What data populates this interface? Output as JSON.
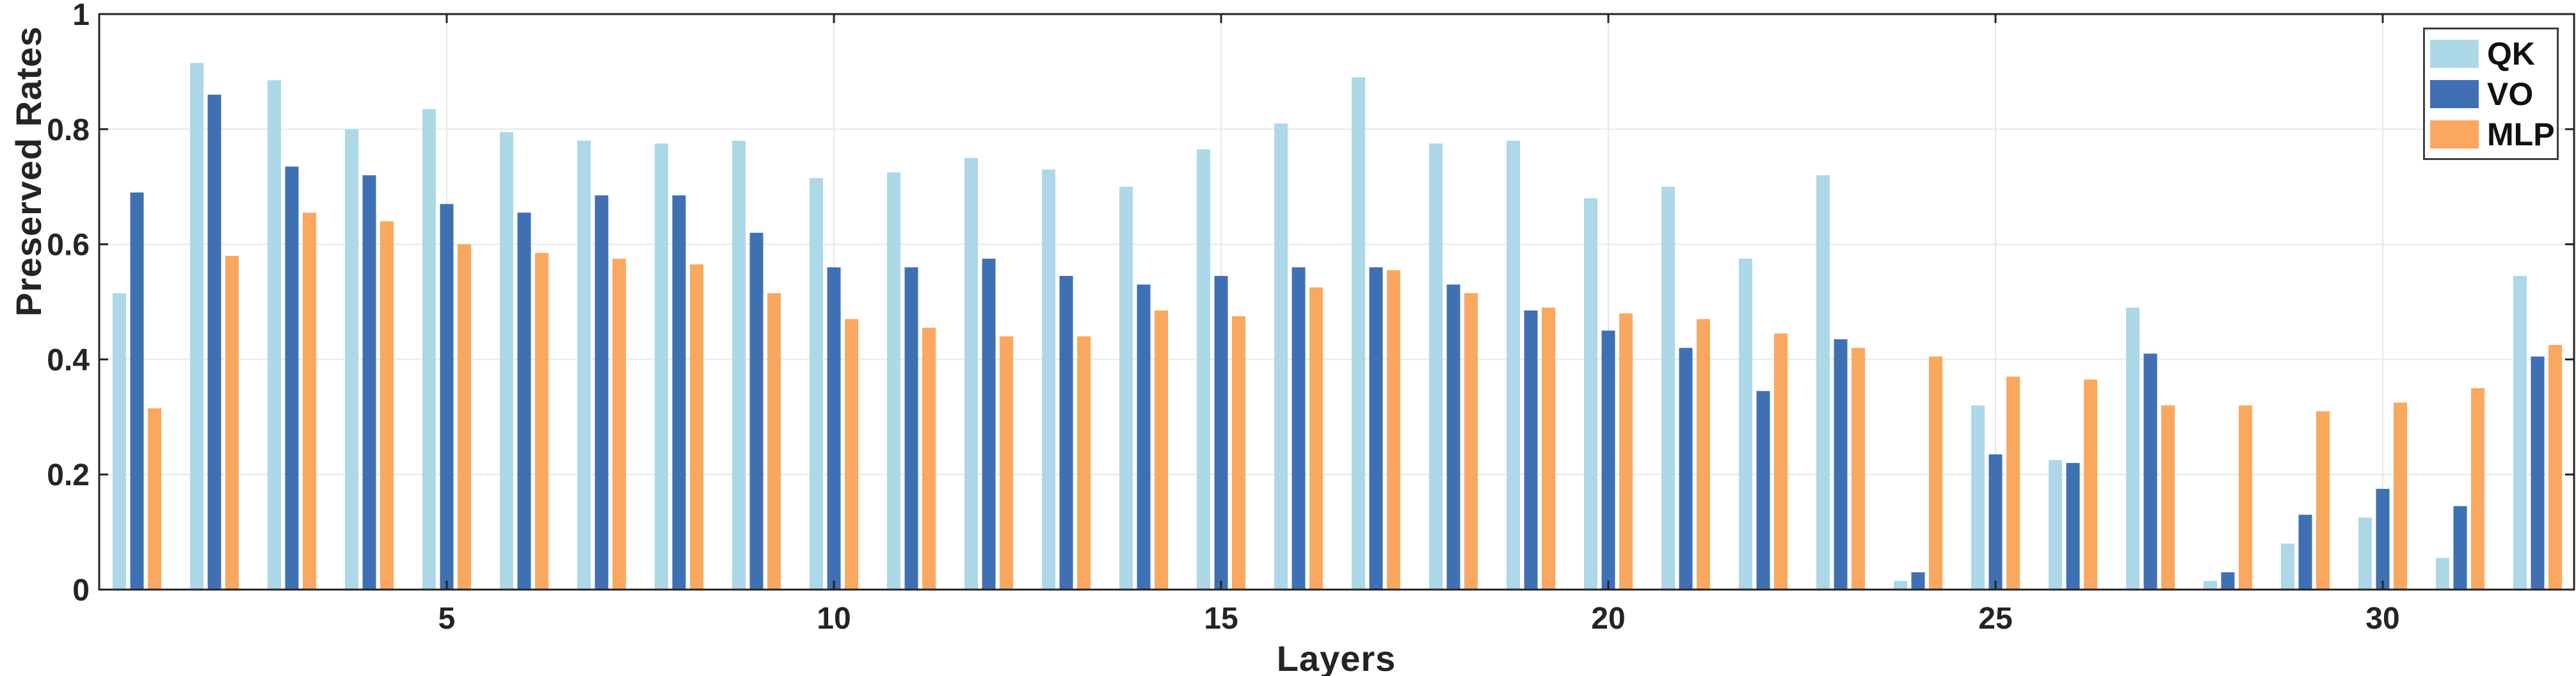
{
  "figure": {
    "kind": "grouped-bar-chart",
    "background_color": "#ffffff",
    "axis_color": "#242424",
    "grid_color": "#e7e7e7"
  },
  "chart_data": {
    "type": "bar",
    "title": "",
    "xlabel": "Layers",
    "ylabel": "Preserved Rates",
    "categories": [
      1,
      2,
      3,
      4,
      5,
      6,
      7,
      8,
      9,
      10,
      11,
      12,
      13,
      14,
      15,
      16,
      17,
      18,
      19,
      20,
      21,
      22,
      23,
      24,
      25,
      26,
      27,
      28,
      29,
      30,
      31,
      32
    ],
    "series": [
      {
        "name": "QK",
        "color": "#ACD8E8",
        "values": [
          0.515,
          0.915,
          0.885,
          0.8,
          0.835,
          0.795,
          0.78,
          0.775,
          0.78,
          0.715,
          0.725,
          0.75,
          0.73,
          0.7,
          0.765,
          0.81,
          0.89,
          0.775,
          0.78,
          0.68,
          0.7,
          0.575,
          0.72,
          0.015,
          0.32,
          0.225,
          0.49,
          0.015,
          0.08,
          0.125,
          0.055,
          0.545
        ]
      },
      {
        "name": "VO",
        "color": "#4070B4",
        "values": [
          0.69,
          0.86,
          0.735,
          0.72,
          0.67,
          0.655,
          0.685,
          0.685,
          0.62,
          0.56,
          0.56,
          0.575,
          0.545,
          0.53,
          0.545,
          0.56,
          0.56,
          0.53,
          0.485,
          0.45,
          0.42,
          0.345,
          0.435,
          0.03,
          0.235,
          0.22,
          0.41,
          0.03,
          0.13,
          0.175,
          0.145,
          0.405
        ]
      },
      {
        "name": "MLP",
        "color": "#FAA85F",
        "values": [
          0.315,
          0.58,
          0.655,
          0.64,
          0.6,
          0.585,
          0.575,
          0.565,
          0.515,
          0.47,
          0.455,
          0.44,
          0.44,
          0.485,
          0.475,
          0.525,
          0.555,
          0.515,
          0.49,
          0.48,
          0.47,
          0.445,
          0.42,
          0.405,
          0.37,
          0.365,
          0.32,
          0.32,
          0.31,
          0.325,
          0.35,
          0.425
        ]
      }
    ],
    "x_ticks": [
      5,
      10,
      15,
      20,
      25,
      30
    ],
    "y_ticks": [
      0,
      0.2,
      0.4,
      0.6,
      0.8,
      1
    ],
    "y_tick_labels": [
      "0",
      "0.2",
      "0.4",
      "0.6",
      "0.8",
      "1"
    ],
    "ylim": [
      0,
      1
    ],
    "grid": true,
    "legend_position": "top-right"
  },
  "legend": {
    "items": [
      {
        "label": "QK",
        "color": "#ACD8E8"
      },
      {
        "label": "VO",
        "color": "#4070B4"
      },
      {
        "label": "MLP",
        "color": "#FAA85F"
      }
    ]
  }
}
